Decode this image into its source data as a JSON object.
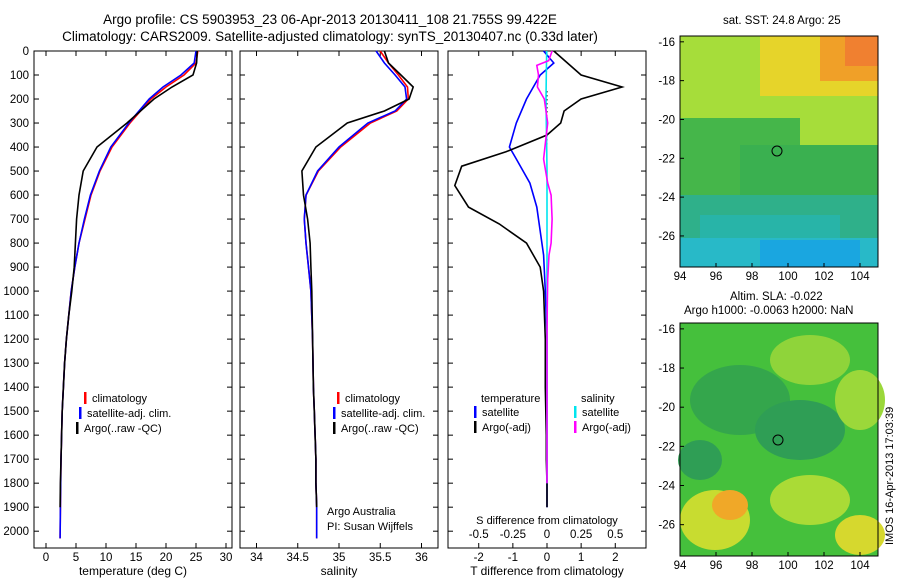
{
  "header": {
    "line1": "Argo profile: CS 5903953_23 06-Apr-2013 20130411_108 21.755S 99.422E",
    "line2": "Climatology: CARS2009. Satellite-adjusted climatology: synTS_20130407.nc (0.33d later)"
  },
  "map1": {
    "title": "sat. SST: 24.8 Argo: 25",
    "xticks": [
      "94",
      "96",
      "98",
      "100",
      "102",
      "104"
    ],
    "yticks": [
      "-16",
      "-18",
      "-20",
      "-22",
      "-24",
      "-26"
    ],
    "float_lon": 99.422,
    "float_lat": -21.755
  },
  "map2": {
    "title_line1": "Altim. SLA: -0.022",
    "title_line2": "Argo h1000: -0.0063 h2000: NaN",
    "xticks": [
      "94",
      "96",
      "98",
      "100",
      "102",
      "104"
    ],
    "yticks": [
      "-16",
      "-18",
      "-20",
      "-22",
      "-24",
      "-26"
    ],
    "float_lon": 99.422,
    "float_lat": -21.755
  },
  "stamp": "IMOS 16-Apr-2013 17:03:39",
  "colors": {
    "climatology": "#ff0000",
    "satellite": "#0000ff",
    "argo": "#000000",
    "sat_salinity": "#00e5ee",
    "argo_salinity": "#ff00ff"
  },
  "chart_data": [
    {
      "type": "line",
      "xlabel": "temperature (deg C)",
      "xlim": [
        -2,
        31
      ],
      "ylim": [
        2070,
        0
      ],
      "yreverse": true,
      "xticks": [
        "0",
        "5",
        "10",
        "15",
        "20",
        "25",
        "30"
      ],
      "yticks": [
        "0",
        "100",
        "200",
        "300",
        "400",
        "500",
        "600",
        "700",
        "800",
        "900",
        "1000",
        "1100",
        "1200",
        "1300",
        "1400",
        "1500",
        "1600",
        "1700",
        "1800",
        "1900",
        "2000"
      ],
      "legend": [
        "climatology",
        "satellite-adj. clim.",
        "Argo(..raw -QC)"
      ],
      "series": [
        {
          "name": "climatology",
          "color": "#ff0000",
          "x": [
            25.3,
            25.0,
            23.0,
            20.0,
            17.5,
            14.0,
            11.0,
            9.0,
            7.5,
            6.5,
            5.5,
            4.8,
            4.2,
            3.8,
            3.4,
            3.1,
            2.9,
            2.7,
            2.6,
            2.5,
            2.45,
            2.4,
            2.35
          ],
          "y": [
            0,
            50,
            100,
            150,
            200,
            300,
            400,
            500,
            600,
            700,
            800,
            900,
            1000,
            1100,
            1200,
            1300,
            1400,
            1500,
            1600,
            1700,
            1800,
            1900,
            2030
          ]
        },
        {
          "name": "satellite-adj. clim.",
          "color": "#0000ff",
          "x": [
            25.0,
            24.7,
            22.5,
            19.5,
            17.2,
            13.8,
            10.8,
            8.9,
            7.4,
            6.4,
            5.5,
            4.8,
            4.2,
            3.8,
            3.4,
            3.1,
            2.9,
            2.7,
            2.6,
            2.5,
            2.45,
            2.4,
            2.35
          ],
          "y": [
            0,
            50,
            100,
            150,
            200,
            300,
            400,
            500,
            600,
            700,
            800,
            900,
            1000,
            1100,
            1200,
            1300,
            1400,
            1500,
            1600,
            1700,
            1800,
            1900,
            2030
          ]
        },
        {
          "name": "Argo(..raw -QC)",
          "color": "#000000",
          "x": [
            25.2,
            25.1,
            24.5,
            21.0,
            18.0,
            13.5,
            8.5,
            6.2,
            5.5,
            5.1,
            4.9,
            4.7,
            4.3,
            3.8,
            3.4,
            3.1,
            2.9,
            2.7,
            2.6,
            2.5,
            2.4,
            2.35
          ],
          "y": [
            0,
            50,
            100,
            150,
            200,
            300,
            400,
            500,
            600,
            700,
            800,
            900,
            1000,
            1100,
            1200,
            1300,
            1400,
            1500,
            1600,
            1700,
            1800,
            1900
          ]
        }
      ]
    },
    {
      "type": "line",
      "xlabel": "salinity",
      "xlim": [
        33.8,
        36.2
      ],
      "ylim": [
        2070,
        0
      ],
      "yreverse": true,
      "xticks": [
        "34",
        "34.5",
        "35",
        "35.5",
        "36"
      ],
      "legend": [
        "climatology",
        "satellite-adj. clim.",
        "Argo(..raw -QC)"
      ],
      "notes": [
        "Argo Australia",
        "PI: Susan Wijffels"
      ],
      "series": [
        {
          "name": "climatology",
          "color": "#ff0000",
          "x": [
            35.5,
            35.6,
            35.72,
            35.83,
            35.84,
            35.7,
            35.38,
            35.02,
            34.75,
            34.6,
            34.58,
            34.6,
            34.63,
            34.66,
            34.68,
            34.69,
            34.7,
            34.71,
            34.72,
            34.72,
            34.73,
            34.73
          ],
          "y": [
            0,
            50,
            100,
            150,
            200,
            250,
            300,
            400,
            500,
            600,
            700,
            800,
            900,
            1000,
            1200,
            1400,
            1500,
            1600,
            1700,
            1800,
            1900,
            2030
          ]
        },
        {
          "name": "satellite-adj. clim.",
          "color": "#0000ff",
          "x": [
            35.45,
            35.55,
            35.68,
            35.8,
            35.82,
            35.68,
            35.35,
            35.0,
            34.74,
            34.6,
            34.58,
            34.6,
            34.63,
            34.66,
            34.68,
            34.69,
            34.7,
            34.71,
            34.72,
            34.72,
            34.73,
            34.73
          ],
          "y": [
            0,
            50,
            100,
            150,
            200,
            250,
            300,
            400,
            500,
            600,
            700,
            800,
            900,
            1000,
            1200,
            1400,
            1500,
            1600,
            1700,
            1800,
            1900,
            2030
          ]
        },
        {
          "name": "Argo(..raw -QC)",
          "color": "#000000",
          "x": [
            35.55,
            35.6,
            35.75,
            35.9,
            35.85,
            35.55,
            35.1,
            34.72,
            34.55,
            34.57,
            34.62,
            34.65,
            34.66,
            34.67,
            34.68,
            34.69,
            34.7,
            34.71,
            34.72,
            34.72,
            34.73
          ],
          "y": [
            0,
            50,
            100,
            150,
            200,
            250,
            300,
            400,
            500,
            600,
            700,
            800,
            900,
            1000,
            1200,
            1400,
            1500,
            1600,
            1700,
            1800,
            1900
          ]
        }
      ]
    },
    {
      "type": "line",
      "xlabel": "T difference from climatology",
      "xlabel_top": "S difference from climatology",
      "xlim": [
        -2.9,
        2.9
      ],
      "ylim": [
        2070,
        0
      ],
      "yreverse": true,
      "xticks": [
        "-2",
        "-1",
        "0",
        "1",
        "2"
      ],
      "xticks_top": [
        "-0.5",
        "-0.25",
        "0",
        "0.25",
        "0.5"
      ],
      "legend_left_title": "temperature",
      "legend_right_title": "salinity",
      "legend": [
        "satellite",
        "Argo(-adj)",
        "satellite",
        "Argo(-adj)"
      ],
      "series": [
        {
          "name": "temperature satellite",
          "color": "#0000ff",
          "x": [
            -0.1,
            0.2,
            -0.2,
            -0.6,
            -0.9,
            -1.1,
            -0.9,
            -0.5,
            -0.3,
            -0.2,
            -0.1,
            -0.05,
            0,
            0,
            0,
            0,
            0
          ],
          "y": [
            0,
            50,
            100,
            200,
            300,
            400,
            450,
            550,
            650,
            750,
            850,
            1000,
            1200,
            1400,
            1600,
            1800,
            1900
          ]
        },
        {
          "name": "temperature Argo(-adj)",
          "color": "#000000",
          "x": [
            0.2,
            1.0,
            2.2,
            1.0,
            0.5,
            0.4,
            0.0,
            -1.2,
            -2.5,
            -2.7,
            -2.3,
            -1.4,
            -0.6,
            -0.2,
            -0.1,
            -0.05,
            -0.05,
            -0.02,
            -0.02,
            0,
            0
          ],
          "y": [
            0,
            100,
            150,
            200,
            250,
            300,
            350,
            420,
            480,
            560,
            650,
            720,
            800,
            900,
            1000,
            1200,
            1400,
            1600,
            1700,
            1800,
            1900
          ]
        },
        {
          "name": "salinity satellite",
          "color": "#00e5ee",
          "x": [
            -0.01,
            -0.02,
            -0.03,
            -0.02,
            -0.01,
            0,
            0,
            0,
            0,
            0,
            0,
            0,
            0
          ],
          "y": [
            0,
            100,
            200,
            300,
            400,
            500,
            600,
            800,
            1000,
            1200,
            1400,
            1600,
            1800
          ]
        },
        {
          "name": "salinity Argo(-adj)",
          "color": "#ff00ff",
          "x": [
            0.15,
            0.05,
            -0.3,
            -0.25,
            -0.28,
            -0.08,
            0.02,
            -0.02,
            -0.1,
            0.02,
            0.12,
            0.15,
            0.12,
            0.06,
            0.02,
            0.01,
            0,
            0,
            0,
            0
          ],
          "y": [
            0,
            40,
            60,
            100,
            150,
            200,
            300,
            350,
            450,
            550,
            600,
            700,
            800,
            850,
            950,
            1050,
            1200,
            1400,
            1600,
            1800
          ]
        }
      ]
    }
  ]
}
